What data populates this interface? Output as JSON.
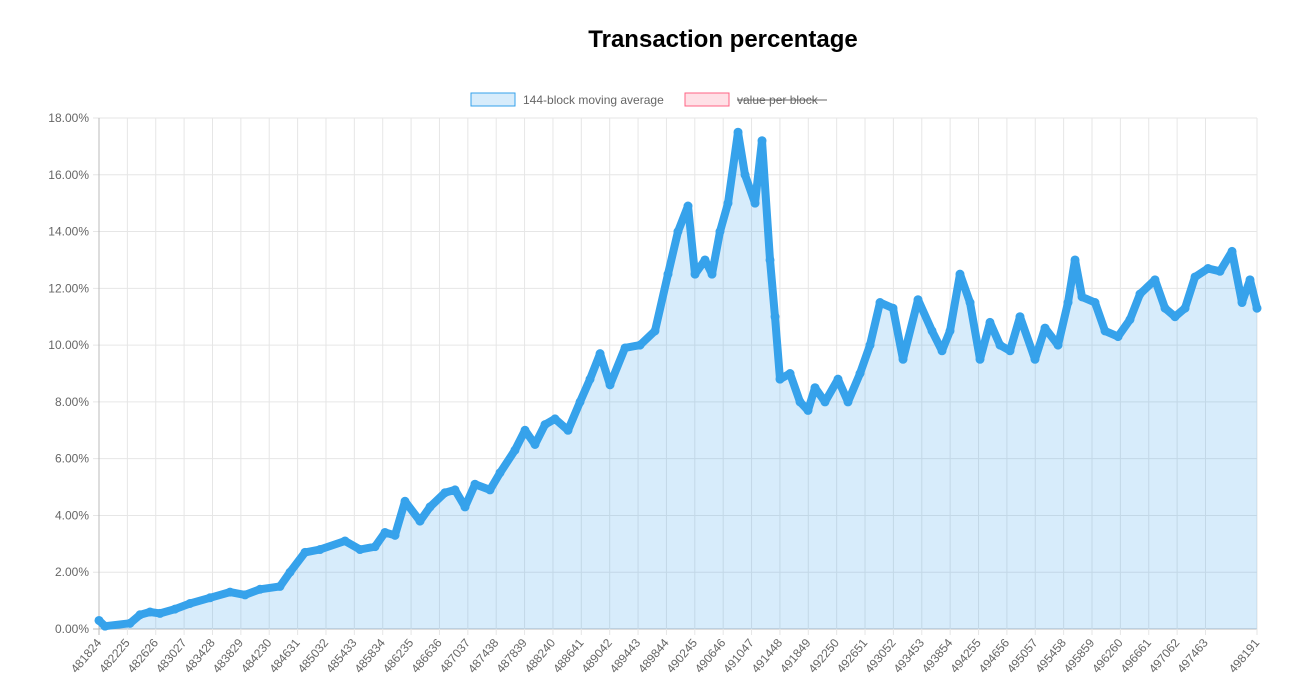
{
  "chart_data": {
    "type": "area",
    "title": "Transaction percentage",
    "xlabel": "",
    "ylabel": "",
    "ylim": [
      0,
      18
    ],
    "xlim": [
      481824,
      498191
    ],
    "grid": true,
    "legend_position": "top",
    "y_ticks": [
      "0.00%",
      "2.00%",
      "4.00%",
      "6.00%",
      "8.00%",
      "10.00%",
      "12.00%",
      "14.00%",
      "16.00%",
      "18.00%"
    ],
    "x_ticks": [
      "481824",
      "482225",
      "482626",
      "483027",
      "483428",
      "483829",
      "484230",
      "484631",
      "485032",
      "485433",
      "485834",
      "486235",
      "486636",
      "487037",
      "487438",
      "487839",
      "488240",
      "488641",
      "489042",
      "489443",
      "489844",
      "490245",
      "490646",
      "491047",
      "491448",
      "491849",
      "492250",
      "492651",
      "493052",
      "493453",
      "493854",
      "494255",
      "494656",
      "495057",
      "495458",
      "495859",
      "496260",
      "496661",
      "497062",
      "497463",
      "498191"
    ],
    "series": [
      {
        "name": "144-block moving average",
        "color": "#36a2eb",
        "fill": "rgba(54,162,235,0.2)",
        "hidden": false,
        "x": [
          481824,
          481909,
          482262,
          482403,
          482545,
          482686,
          482898,
          483110,
          483393,
          483676,
          483888,
          484100,
          484382,
          484524,
          484736,
          484948,
          485301,
          485513,
          485725,
          485866,
          486008,
          486149,
          486361,
          486502,
          486714,
          486856,
          486997,
          487138,
          487350,
          487491,
          487703,
          487845,
          487986,
          488128,
          488269,
          488453,
          488623,
          488764,
          488906,
          489047,
          489259,
          489471,
          489682,
          489866,
          490007,
          490149,
          490248,
          490389,
          490488,
          490601,
          490714,
          490856,
          490955,
          491096,
          491195,
          491308,
          491379,
          491449,
          491591,
          491732,
          491845,
          491944,
          492085,
          492269,
          492410,
          492580,
          492721,
          492863,
          493046,
          493188,
          493400,
          493598,
          493739,
          493852,
          493993,
          494135,
          494276,
          494417,
          494559,
          494700,
          494841,
          495053,
          495195,
          495379,
          495520,
          495619,
          495718,
          495901,
          496043,
          496227,
          496396,
          496537,
          496749,
          496891,
          497032,
          497174,
          497315,
          497499,
          497668,
          497838,
          497979,
          498092,
          498191
        ],
        "y": [
          0.3,
          0.1,
          0.2,
          0.5,
          0.6,
          0.55,
          0.7,
          0.9,
          1.1,
          1.3,
          1.2,
          1.4,
          1.5,
          2.0,
          2.7,
          2.8,
          3.1,
          2.8,
          2.9,
          3.4,
          3.3,
          4.5,
          3.8,
          4.3,
          4.8,
          4.9,
          4.3,
          5.1,
          4.9,
          5.5,
          6.3,
          7.0,
          6.5,
          7.2,
          7.4,
          7.0,
          8.0,
          8.8,
          9.7,
          8.6,
          9.9,
          10.0,
          10.5,
          12.5,
          14.0,
          14.9,
          12.5,
          13.0,
          12.5,
          14.0,
          15.0,
          17.5,
          16.0,
          15.0,
          17.2,
          13.0,
          11.0,
          8.8,
          9.0,
          8.0,
          7.7,
          8.5,
          8.0,
          8.8,
          8.0,
          9.0,
          10.0,
          11.5,
          11.3,
          9.5,
          11.6,
          10.5,
          9.8,
          10.5,
          12.5,
          11.5,
          9.5,
          10.8,
          10.0,
          9.8,
          11.0,
          9.5,
          10.6,
          10.0,
          11.5,
          13.0,
          11.7,
          11.5,
          10.5,
          10.3,
          10.9,
          11.8,
          12.3,
          11.3,
          11.0,
          11.3,
          12.4,
          12.7,
          12.6,
          13.3,
          11.5,
          12.3,
          11.3
        ]
      },
      {
        "name": "value per block",
        "color": "#ff6384",
        "fill": "rgba(255,99,132,0.2)",
        "hidden": true
      }
    ]
  }
}
